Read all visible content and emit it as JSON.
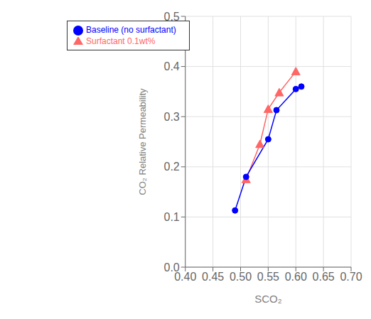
{
  "chart_data": {
    "type": "line",
    "x_label": "SCO₂",
    "y_label": "CO₂ Relative Permeability",
    "series": [
      {
        "name": "Surfactant 0.1wt%",
        "color": "#FF6666",
        "marker": "triangle",
        "x": [
          0.51,
          0.535,
          0.55,
          0.57,
          0.6
        ],
        "values": [
          0.175,
          0.245,
          0.315,
          0.348,
          0.39
        ]
      },
      {
        "name": "Baseline (no surfactant)",
        "color": "#0000FF",
        "marker": "circle",
        "x": [
          0.49,
          0.51,
          0.55,
          0.565,
          0.6,
          0.61
        ],
        "values": [
          0.113,
          0.18,
          0.255,
          0.313,
          0.355,
          0.36
        ]
      }
    ],
    "xlim": [
      0.4,
      0.7
    ],
    "ylim": [
      0.0,
      0.5
    ],
    "xticks": [
      {
        "value": 0.4,
        "label": "0.40"
      },
      0.45,
      {
        "value": 0.5,
        "label": "0.50"
      },
      0.55,
      {
        "value": 0.6,
        "label": "0.60"
      },
      0.65,
      {
        "value": 0.7,
        "label": "0.70"
      }
    ],
    "yticks": [
      {
        "value": 0.0,
        "label": "0.0"
      },
      0.1,
      0.2,
      0.3,
      0.4,
      0.5
    ],
    "grid": true,
    "legend": "upper left"
  }
}
